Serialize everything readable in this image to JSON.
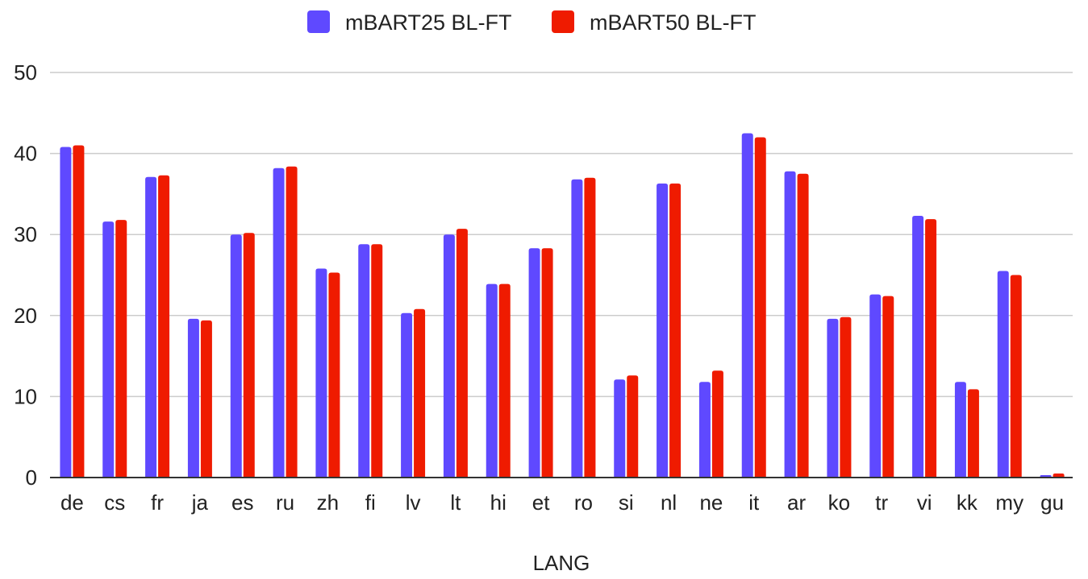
{
  "chart_data": {
    "type": "bar",
    "xlabel": "LANG",
    "ylabel": "",
    "ylim": [
      0,
      50
    ],
    "yticks": [
      0,
      10,
      20,
      30,
      40,
      50
    ],
    "grid": true,
    "legend_position": "top-center",
    "categories": [
      "de",
      "cs",
      "fr",
      "ja",
      "es",
      "ru",
      "zh",
      "fi",
      "lv",
      "lt",
      "hi",
      "et",
      "ro",
      "si",
      "nl",
      "ne",
      "it",
      "ar",
      "ko",
      "tr",
      "vi",
      "kk",
      "my",
      "gu"
    ],
    "series": [
      {
        "name": "mBART25 BL-FT",
        "color": "#5f49ff",
        "values": [
          40.8,
          31.6,
          37.1,
          19.6,
          30.0,
          38.2,
          25.8,
          28.8,
          20.3,
          30.0,
          23.9,
          28.3,
          36.8,
          12.1,
          36.3,
          11.8,
          42.5,
          37.8,
          19.6,
          22.6,
          32.3,
          11.8,
          25.5,
          0.3
        ]
      },
      {
        "name": "mBART50 BL-FT",
        "color": "#ef1b00",
        "values": [
          41.0,
          31.8,
          37.3,
          19.4,
          30.2,
          38.4,
          25.3,
          28.8,
          20.8,
          30.7,
          23.9,
          28.3,
          37.0,
          12.6,
          36.3,
          13.2,
          42.0,
          37.5,
          19.8,
          22.4,
          31.9,
          10.9,
          25.0,
          0.5
        ]
      }
    ]
  }
}
